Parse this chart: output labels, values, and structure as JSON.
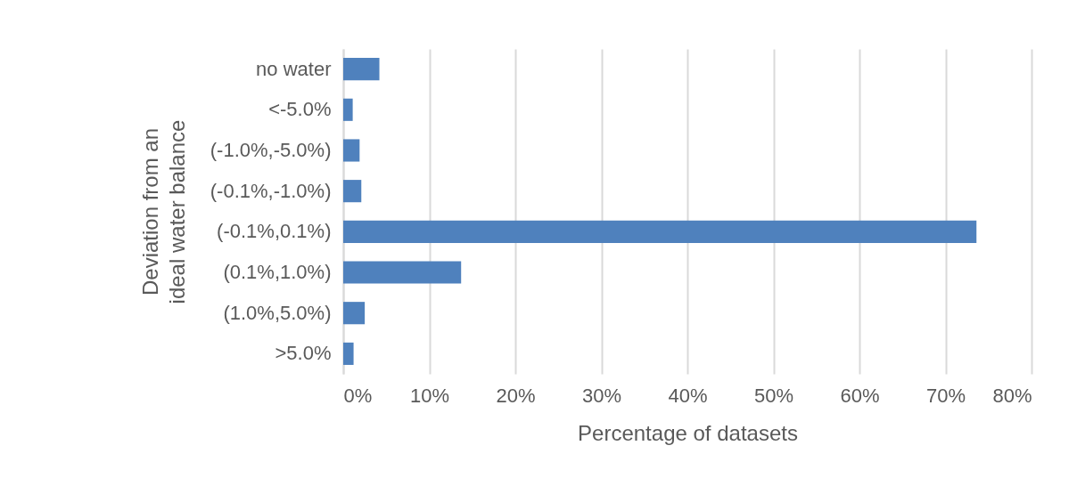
{
  "chart_data": {
    "type": "bar",
    "orientation": "horizontal",
    "categories": [
      "no water",
      "<-5.0%",
      "(-1.0%,-5.0%)",
      "(-0.1%,-1.0%)",
      "(-0.1%,0.1%)",
      "(0.1%,1.0%)",
      "(1.0%,5.0%)",
      ">5.0%"
    ],
    "values": [
      4.2,
      1.1,
      1.9,
      2.1,
      73.6,
      13.7,
      2.5,
      1.2
    ],
    "color": "#4f81bd",
    "xlabel": "Percentage of datasets",
    "ylabel": "Deviation from an ideal water balance",
    "xlim": [
      0,
      80
    ],
    "xticks": [
      {
        "value": 0,
        "label": "0%"
      },
      {
        "value": 10,
        "label": "10%"
      },
      {
        "value": 20,
        "label": "20%"
      },
      {
        "value": 30,
        "label": "30%"
      },
      {
        "value": 40,
        "label": "40%"
      },
      {
        "value": 50,
        "label": "50%"
      },
      {
        "value": 60,
        "label": "60%"
      },
      {
        "value": 70,
        "label": "70%"
      },
      {
        "value": 80,
        "label": "80%"
      }
    ],
    "grid": "x"
  }
}
